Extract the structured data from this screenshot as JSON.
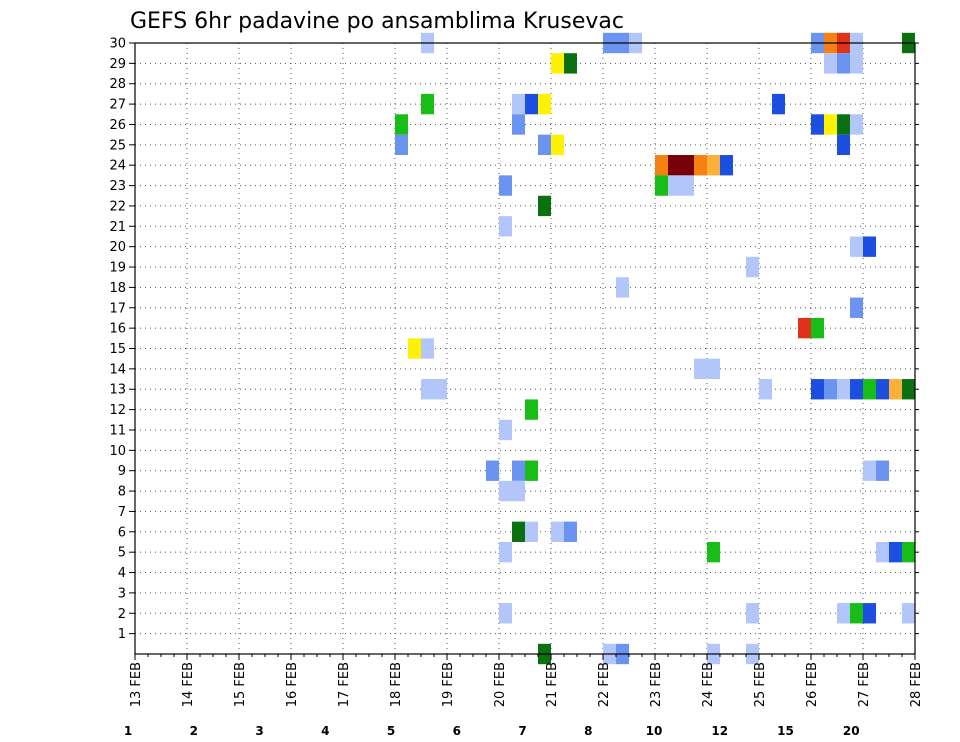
{
  "chart_data": {
    "type": "heatmap",
    "title": "GEFS 6hr padavine po ansamblima Krusevac",
    "xlabel": "",
    "ylabel": "",
    "x_ticks": [
      "13 FEB",
      "14 FEB",
      "15 FEB",
      "16 FEB",
      "17 FEB",
      "18 FEB",
      "19 FEB",
      "20 FEB",
      "21 FEB",
      "22 FEB",
      "23 FEB",
      "24 FEB",
      "25 FEB",
      "26 FEB",
      "27 FEB",
      "28 FEB"
    ],
    "y_ticks": [
      1,
      2,
      3,
      4,
      5,
      6,
      7,
      8,
      9,
      10,
      11,
      12,
      13,
      14,
      15,
      16,
      17,
      18,
      19,
      20,
      21,
      22,
      23,
      24,
      25,
      26,
      27,
      28,
      29,
      30
    ],
    "xlim": [
      0,
      60
    ],
    "ylim": [
      0,
      30
    ],
    "x_unit": "6-hour step from 13 FEB 00",
    "grid": true,
    "colorbar": {
      "labels": [
        "1",
        "2",
        "3",
        "4",
        "5",
        "6",
        "7",
        "8",
        "10",
        "12",
        "15",
        "20"
      ],
      "colors": [
        "#b3c6fa",
        "#6b93f0",
        "#1c4fe0",
        "#6fe84d",
        "#18bd18",
        "#0b700f",
        "#fff200",
        "#fcb03c",
        "#f58210",
        "#e0321a",
        "#b0100c",
        "#780008"
      ]
    },
    "cells": [
      {
        "member": 30,
        "step": 22,
        "v": 1
      },
      {
        "member": 30,
        "step": 36,
        "v": 2
      },
      {
        "member": 30,
        "step": 37,
        "v": 2
      },
      {
        "member": 30,
        "step": 38,
        "v": 1
      },
      {
        "member": 30,
        "step": 52,
        "v": 2
      },
      {
        "member": 30,
        "step": 53,
        "v": 10
      },
      {
        "member": 30,
        "step": 54,
        "v": 12
      },
      {
        "member": 30,
        "step": 55,
        "v": 1
      },
      {
        "member": 30,
        "step": 59,
        "v": 6
      },
      {
        "member": 29,
        "step": 32,
        "v": 7
      },
      {
        "member": 29,
        "step": 33,
        "v": 6
      },
      {
        "member": 29,
        "step": 53,
        "v": 1
      },
      {
        "member": 29,
        "step": 54,
        "v": 2
      },
      {
        "member": 29,
        "step": 55,
        "v": 1
      },
      {
        "member": 27,
        "step": 22,
        "v": 5
      },
      {
        "member": 27,
        "step": 29,
        "v": 1
      },
      {
        "member": 27,
        "step": 30,
        "v": 3
      },
      {
        "member": 27,
        "step": 31,
        "v": 7
      },
      {
        "member": 27,
        "step": 49,
        "v": 3
      },
      {
        "member": 26,
        "step": 20,
        "v": 5
      },
      {
        "member": 26,
        "step": 29,
        "v": 2
      },
      {
        "member": 26,
        "step": 52,
        "v": 3
      },
      {
        "member": 26,
        "step": 53,
        "v": 7
      },
      {
        "member": 26,
        "step": 54,
        "v": 6
      },
      {
        "member": 26,
        "step": 55,
        "v": 1
      },
      {
        "member": 25,
        "step": 20,
        "v": 2
      },
      {
        "member": 25,
        "step": 31,
        "v": 2
      },
      {
        "member": 25,
        "step": 32,
        "v": 7
      },
      {
        "member": 25,
        "step": 54,
        "v": 3
      },
      {
        "member": 24,
        "step": 40,
        "v": 10
      },
      {
        "member": 24,
        "step": 41,
        "v": 20
      },
      {
        "member": 24,
        "step": 42,
        "v": 20
      },
      {
        "member": 24,
        "step": 43,
        "v": 10
      },
      {
        "member": 24,
        "step": 44,
        "v": 8
      },
      {
        "member": 24,
        "step": 45,
        "v": 3
      },
      {
        "member": 23,
        "step": 28,
        "v": 2
      },
      {
        "member": 23,
        "step": 40,
        "v": 5
      },
      {
        "member": 23,
        "step": 41,
        "v": 1
      },
      {
        "member": 23,
        "step": 42,
        "v": 1
      },
      {
        "member": 22,
        "step": 31,
        "v": 6
      },
      {
        "member": 21,
        "step": 28,
        "v": 1
      },
      {
        "member": 20,
        "step": 55,
        "v": 1
      },
      {
        "member": 20,
        "step": 56,
        "v": 3
      },
      {
        "member": 19,
        "step": 47,
        "v": 1
      },
      {
        "member": 18,
        "step": 37,
        "v": 1
      },
      {
        "member": 17,
        "step": 55,
        "v": 2
      },
      {
        "member": 16,
        "step": 51,
        "v": 12
      },
      {
        "member": 16,
        "step": 52,
        "v": 5
      },
      {
        "member": 15,
        "step": 21,
        "v": 7
      },
      {
        "member": 15,
        "step": 22,
        "v": 1
      },
      {
        "member": 14,
        "step": 43,
        "v": 1
      },
      {
        "member": 14,
        "step": 44,
        "v": 1
      },
      {
        "member": 13,
        "step": 22,
        "v": 1
      },
      {
        "member": 13,
        "step": 23,
        "v": 1
      },
      {
        "member": 13,
        "step": 48,
        "v": 1
      },
      {
        "member": 13,
        "step": 52,
        "v": 3
      },
      {
        "member": 13,
        "step": 53,
        "v": 2
      },
      {
        "member": 13,
        "step": 54,
        "v": 1
      },
      {
        "member": 13,
        "step": 55,
        "v": 3
      },
      {
        "member": 13,
        "step": 56,
        "v": 5
      },
      {
        "member": 13,
        "step": 57,
        "v": 3
      },
      {
        "member": 13,
        "step": 58,
        "v": 8
      },
      {
        "member": 13,
        "step": 59,
        "v": 6
      },
      {
        "member": 12,
        "step": 30,
        "v": 5
      },
      {
        "member": 11,
        "step": 28,
        "v": 1
      },
      {
        "member": 9,
        "step": 27,
        "v": 2
      },
      {
        "member": 9,
        "step": 29,
        "v": 2
      },
      {
        "member": 9,
        "step": 30,
        "v": 5
      },
      {
        "member": 9,
        "step": 56,
        "v": 1
      },
      {
        "member": 9,
        "step": 57,
        "v": 2
      },
      {
        "member": 8,
        "step": 28,
        "v": 1
      },
      {
        "member": 8,
        "step": 29,
        "v": 1
      },
      {
        "member": 6,
        "step": 29,
        "v": 6
      },
      {
        "member": 6,
        "step": 30,
        "v": 1
      },
      {
        "member": 6,
        "step": 32,
        "v": 1
      },
      {
        "member": 6,
        "step": 33,
        "v": 2
      },
      {
        "member": 5,
        "step": 28,
        "v": 1
      },
      {
        "member": 5,
        "step": 44,
        "v": 5
      },
      {
        "member": 5,
        "step": 57,
        "v": 1
      },
      {
        "member": 5,
        "step": 58,
        "v": 3
      },
      {
        "member": 5,
        "step": 59,
        "v": 5
      },
      {
        "member": 2,
        "step": 28,
        "v": 1
      },
      {
        "member": 2,
        "step": 47,
        "v": 1
      },
      {
        "member": 2,
        "step": 54,
        "v": 1
      },
      {
        "member": 2,
        "step": 55,
        "v": 5
      },
      {
        "member": 2,
        "step": 56,
        "v": 3
      },
      {
        "member": 2,
        "step": 59,
        "v": 1
      },
      {
        "member": 0,
        "step": 31,
        "v": 6
      },
      {
        "member": 0,
        "step": 36,
        "v": 1
      },
      {
        "member": 0,
        "step": 37,
        "v": 2
      },
      {
        "member": 0,
        "step": 44,
        "v": 1
      },
      {
        "member": 0,
        "step": 47,
        "v": 1
      }
    ]
  }
}
